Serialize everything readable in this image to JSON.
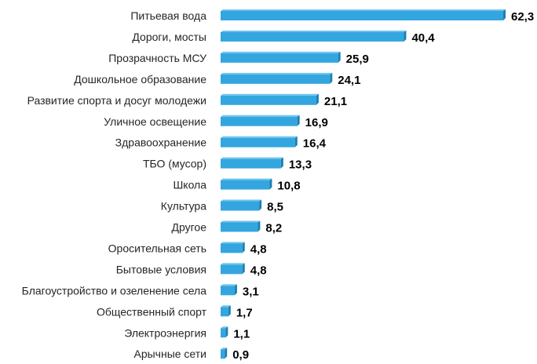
{
  "chart_data": {
    "type": "bar",
    "orientation": "horizontal",
    "title": "",
    "xlabel": "",
    "ylabel": "",
    "xlim": [
      0,
      62.3
    ],
    "grid": false,
    "color": "#33a6df",
    "categories": [
      "Питьевая вода",
      "Дороги, мосты",
      "Прозрачность МСУ",
      "Дошкольное образование",
      "Развитие спорта и досуг молодежи",
      "Уличное освещение",
      "Здравоохранение",
      "ТБО (мусор)",
      "Школа",
      "Культура",
      "Другое",
      "Оросительная сеть",
      "Бытовые условия",
      "Благоустройство и озеленение села",
      "Общественный спорт",
      "Электроэнергия",
      "Арычные сети"
    ],
    "values": [
      62.3,
      40.4,
      25.9,
      24.1,
      21.1,
      16.9,
      16.4,
      13.3,
      10.8,
      8.5,
      8.2,
      4.8,
      4.8,
      3.1,
      1.7,
      1.1,
      0.9
    ],
    "value_labels": [
      "62,3",
      "40,4",
      "25,9",
      "24,1",
      "21,1",
      "16,9",
      "16,4",
      "13,3",
      "10,8",
      "8,5",
      "8,2",
      "4,8",
      "4,8",
      "3,1",
      "1,7",
      "1,1",
      "0,9"
    ]
  }
}
